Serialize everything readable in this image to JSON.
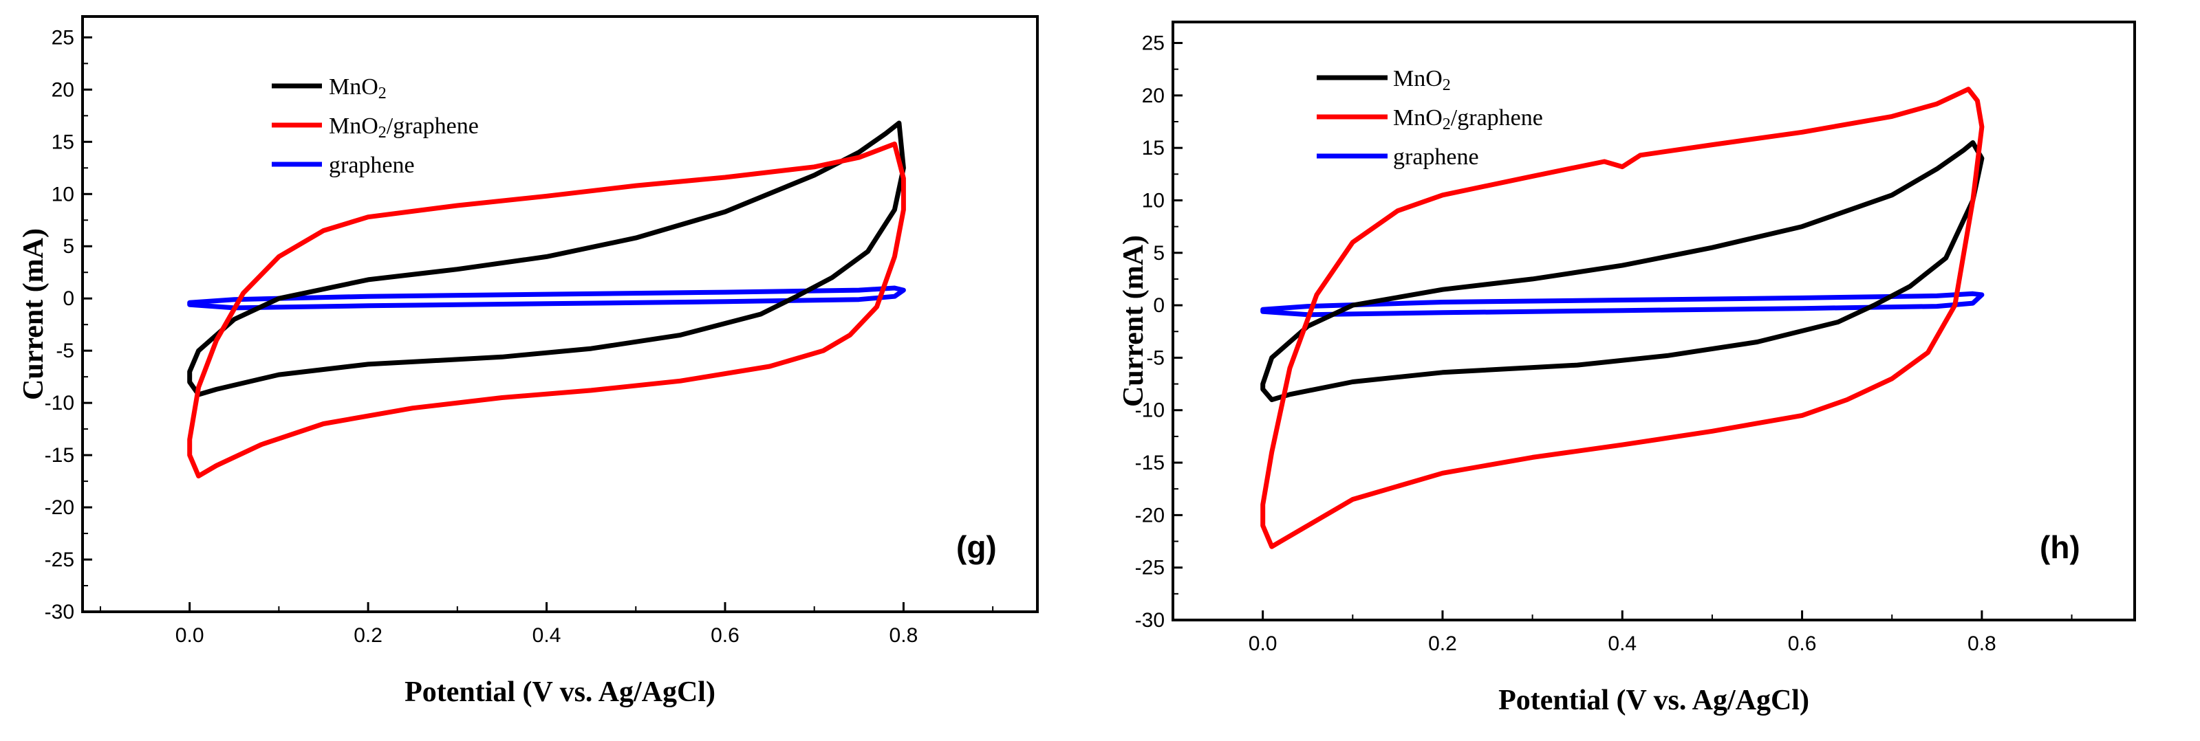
{
  "chart_data": [
    {
      "type": "line",
      "panel_label": "(g)",
      "xlabel": "Potential (V vs. Ag/AgCl)",
      "ylabel": "Current (mA)",
      "xlim": [
        -0.12,
        0.95
      ],
      "ylim": [
        -30,
        27
      ],
      "xticks": [
        0.0,
        0.2,
        0.4,
        0.6,
        0.8
      ],
      "xtick_labels": [
        "0.0",
        "0.2",
        "0.4",
        "0.6",
        "0.8"
      ],
      "yticks": [
        25,
        20,
        15,
        10,
        5,
        0,
        -5,
        -10,
        -15,
        -20,
        -25,
        -30
      ],
      "ytick_labels": [
        "25",
        "20",
        "15",
        "10",
        "5",
        "0",
        "-5",
        "-10",
        "-15",
        "-20",
        "-25",
        "-30"
      ],
      "legend_position": "top-left",
      "series": [
        {
          "name": "MnO2",
          "label_main": "MnO",
          "label_sub": "2",
          "color": "#000000",
          "x": [
            0.0,
            0.01,
            0.05,
            0.1,
            0.2,
            0.3,
            0.4,
            0.5,
            0.6,
            0.7,
            0.75,
            0.78,
            0.795,
            0.8,
            0.79,
            0.76,
            0.72,
            0.68,
            0.64,
            0.55,
            0.45,
            0.35,
            0.2,
            0.1,
            0.03,
            0.01,
            0.0
          ],
          "y": [
            -7.0,
            -5.0,
            -2.0,
            0.0,
            1.8,
            2.8,
            4.0,
            5.8,
            8.3,
            11.8,
            14.0,
            15.8,
            16.8,
            12.5,
            8.5,
            4.5,
            2.0,
            0.2,
            -1.5,
            -3.5,
            -4.8,
            -5.6,
            -6.3,
            -7.3,
            -8.7,
            -9.2,
            -8.0
          ]
        },
        {
          "name": "MnO2/graphene",
          "label_main": "MnO",
          "label_sub": "2",
          "label_rest": "/graphene",
          "color": "#ff0000",
          "x": [
            0.0,
            0.01,
            0.03,
            0.06,
            0.1,
            0.15,
            0.2,
            0.3,
            0.4,
            0.5,
            0.6,
            0.7,
            0.75,
            0.79,
            0.8,
            0.8,
            0.79,
            0.77,
            0.74,
            0.71,
            0.65,
            0.55,
            0.45,
            0.35,
            0.25,
            0.15,
            0.08,
            0.03,
            0.01,
            0.0
          ],
          "y": [
            -13.5,
            -8.5,
            -4.0,
            0.5,
            4.0,
            6.5,
            7.8,
            8.9,
            9.8,
            10.8,
            11.6,
            12.6,
            13.5,
            14.8,
            11.5,
            8.5,
            4.0,
            -0.8,
            -3.5,
            -5.0,
            -6.5,
            -7.9,
            -8.8,
            -9.5,
            -10.5,
            -12.0,
            -14.0,
            -16.0,
            -17.0,
            -15.0
          ]
        },
        {
          "name": "graphene",
          "label_main": "graphene",
          "color": "#0000ff",
          "x": [
            0.0,
            0.05,
            0.2,
            0.4,
            0.6,
            0.75,
            0.79,
            0.8,
            0.79,
            0.75,
            0.6,
            0.4,
            0.2,
            0.05,
            0.0
          ],
          "y": [
            -0.4,
            -0.1,
            0.2,
            0.4,
            0.6,
            0.8,
            1.0,
            0.8,
            0.2,
            -0.1,
            -0.3,
            -0.5,
            -0.7,
            -0.9,
            -0.6
          ]
        }
      ]
    },
    {
      "type": "line",
      "panel_label": "(h)",
      "xlabel": "Potential (V vs. Ag/AgCl)",
      "ylabel": "Current (mA)",
      "xlim": [
        -0.1,
        0.97
      ],
      "ylim": [
        -30,
        27
      ],
      "xticks": [
        0.0,
        0.2,
        0.4,
        0.6,
        0.8
      ],
      "xtick_labels": [
        "0.0",
        "0.2",
        "0.4",
        "0.6",
        "0.8"
      ],
      "yticks": [
        25,
        20,
        15,
        10,
        5,
        0,
        -5,
        -10,
        -15,
        -20,
        -25,
        -30
      ],
      "ytick_labels": [
        "25",
        "20",
        "15",
        "10",
        "5",
        "0",
        "-5",
        "-10",
        "-15",
        "-20",
        "-25",
        "-30"
      ],
      "legend_position": "top-left",
      "series": [
        {
          "name": "MnO2",
          "label_main": "MnO",
          "label_sub": "2",
          "color": "#000000",
          "x": [
            0.0,
            0.01,
            0.05,
            0.1,
            0.2,
            0.3,
            0.4,
            0.5,
            0.6,
            0.7,
            0.75,
            0.78,
            0.79,
            0.8,
            0.79,
            0.76,
            0.72,
            0.68,
            0.64,
            0.55,
            0.45,
            0.35,
            0.2,
            0.1,
            0.03,
            0.01,
            0.0
          ],
          "y": [
            -7.5,
            -5.0,
            -2.0,
            0.0,
            1.5,
            2.5,
            3.8,
            5.5,
            7.5,
            10.5,
            13.0,
            14.8,
            15.5,
            14.0,
            10.0,
            4.5,
            1.8,
            0.0,
            -1.6,
            -3.5,
            -4.8,
            -5.7,
            -6.4,
            -7.3,
            -8.5,
            -9.0,
            -8.0
          ]
        },
        {
          "name": "MnO2/graphene",
          "label_main": "MnO",
          "label_sub": "2",
          "label_rest": "/graphene",
          "color": "#ff0000",
          "x": [
            0.0,
            0.01,
            0.03,
            0.06,
            0.1,
            0.15,
            0.2,
            0.3,
            0.38,
            0.4,
            0.42,
            0.5,
            0.6,
            0.7,
            0.75,
            0.785,
            0.795,
            0.8,
            0.79,
            0.77,
            0.74,
            0.7,
            0.65,
            0.6,
            0.5,
            0.4,
            0.3,
            0.2,
            0.1,
            0.05,
            0.02,
            0.01,
            0.0
          ],
          "y": [
            -19.0,
            -14.0,
            -6.0,
            1.0,
            6.0,
            9.0,
            10.5,
            12.3,
            13.7,
            13.2,
            14.3,
            15.3,
            16.5,
            18.0,
            19.2,
            20.6,
            19.5,
            17.0,
            10.0,
            0.0,
            -4.5,
            -7.0,
            -9.0,
            -10.5,
            -12.0,
            -13.3,
            -14.5,
            -16.0,
            -18.5,
            -21.0,
            -22.5,
            -23.0,
            -21.0
          ]
        },
        {
          "name": "graphene",
          "label_main": "graphene",
          "color": "#0000ff",
          "x": [
            0.0,
            0.05,
            0.2,
            0.4,
            0.6,
            0.75,
            0.79,
            0.8,
            0.79,
            0.75,
            0.6,
            0.4,
            0.2,
            0.05,
            0.0
          ],
          "y": [
            -0.4,
            -0.1,
            0.3,
            0.5,
            0.7,
            0.9,
            1.1,
            1.0,
            0.2,
            -0.1,
            -0.3,
            -0.5,
            -0.7,
            -0.9,
            -0.6
          ]
        }
      ]
    }
  ]
}
